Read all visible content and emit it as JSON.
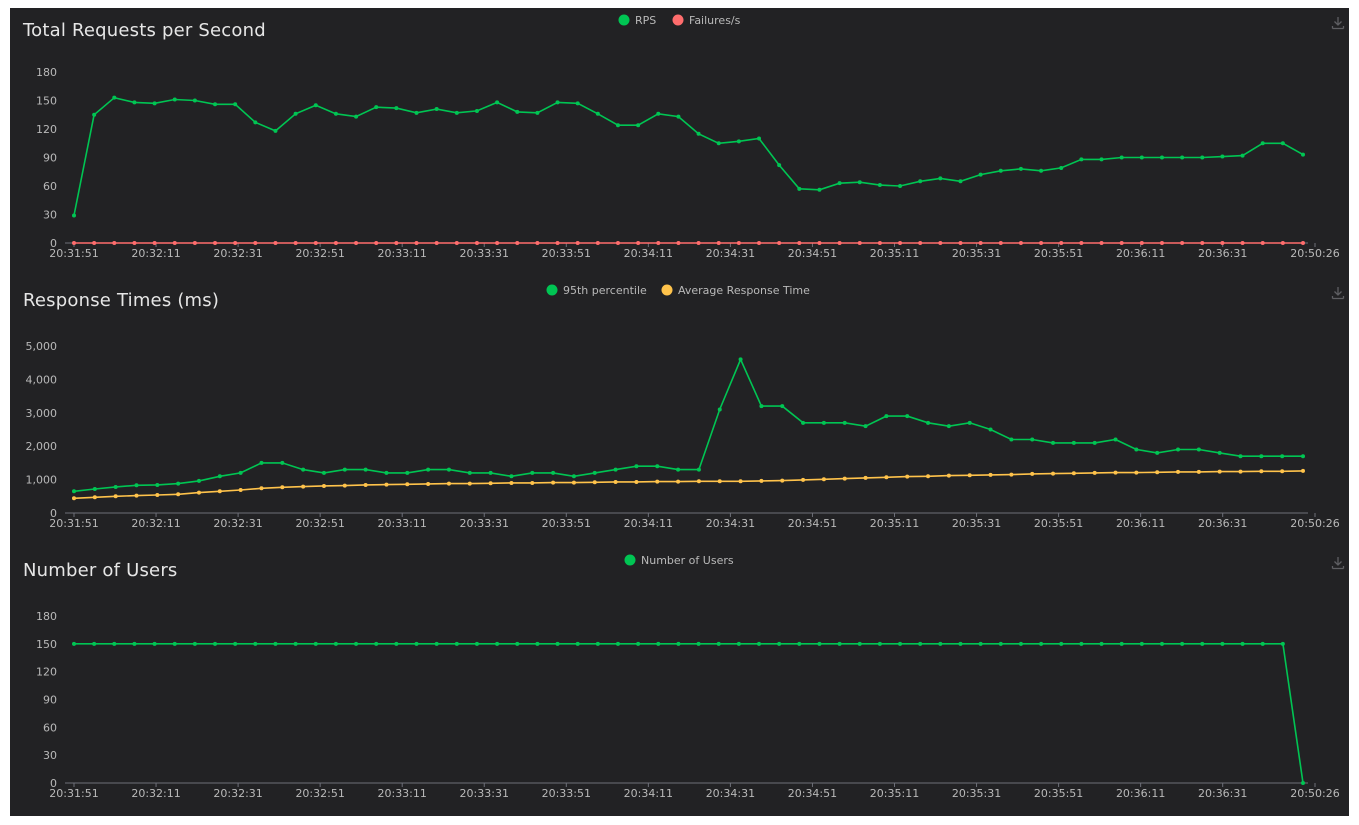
{
  "icons": {
    "download": "download-icon"
  },
  "chart_data": [
    {
      "type": "line",
      "title": "Total Requests per Second",
      "x_tick_labels": [
        "20:31:51",
        "20:32:11",
        "20:32:31",
        "20:32:51",
        "20:33:11",
        "20:33:31",
        "20:33:51",
        "20:34:11",
        "20:34:31",
        "20:34:51",
        "20:35:11",
        "20:35:31",
        "20:35:51",
        "20:36:11",
        "20:36:31",
        "20:50:26"
      ],
      "y_tick_labels": [
        "0",
        "30",
        "60",
        "90",
        "120",
        "150",
        "180"
      ],
      "ylim": [
        0,
        180
      ],
      "grid": false,
      "legend_position": "top-center",
      "series": [
        {
          "name": "RPS",
          "color": "#00c553",
          "values": [
            29,
            135,
            153,
            148,
            147,
            151,
            150,
            146,
            146,
            127,
            118,
            136,
            145,
            136,
            133,
            143,
            142,
            137,
            141,
            137,
            139,
            148,
            138,
            137,
            148,
            147,
            136,
            124,
            124,
            136,
            133,
            115,
            105,
            107,
            110,
            82,
            57,
            56,
            63,
            64,
            61,
            60,
            65,
            68,
            65,
            72,
            76,
            78,
            76,
            79,
            88,
            88,
            90,
            90,
            90,
            90,
            90,
            91,
            92,
            105,
            105,
            93
          ]
        },
        {
          "name": "Failures/s",
          "color": "#ff6d6d",
          "values": [
            0,
            0,
            0,
            0,
            0,
            0,
            0,
            0,
            0,
            0,
            0,
            0,
            0,
            0,
            0,
            0,
            0,
            0,
            0,
            0,
            0,
            0,
            0,
            0,
            0,
            0,
            0,
            0,
            0,
            0,
            0,
            0,
            0,
            0,
            0,
            0,
            0,
            0,
            0,
            0,
            0,
            0,
            0,
            0,
            0,
            0,
            0,
            0,
            0,
            0,
            0,
            0,
            0,
            0,
            0,
            0,
            0,
            0,
            0,
            0,
            0,
            0
          ]
        }
      ]
    },
    {
      "type": "line",
      "title": "Response Times (ms)",
      "x_tick_labels": [
        "20:31:51",
        "20:32:11",
        "20:32:31",
        "20:32:51",
        "20:33:11",
        "20:33:31",
        "20:33:51",
        "20:34:11",
        "20:34:31",
        "20:34:51",
        "20:35:11",
        "20:35:31",
        "20:35:51",
        "20:36:11",
        "20:36:31",
        "20:50:26"
      ],
      "y_tick_labels": [
        "0",
        "1,000",
        "2,000",
        "3,000",
        "4,000",
        "5,000"
      ],
      "ylim": [
        0,
        5000
      ],
      "grid": false,
      "legend_position": "top-center",
      "series": [
        {
          "name": "95th percentile",
          "color": "#00c553",
          "values": [
            650,
            720,
            780,
            830,
            840,
            880,
            960,
            1100,
            1200,
            1500,
            1500,
            1300,
            1200,
            1300,
            1300,
            1200,
            1200,
            1300,
            1300,
            1200,
            1200,
            1100,
            1200,
            1200,
            1100,
            1200,
            1300,
            1400,
            1400,
            1300,
            1300,
            3100,
            4600,
            3200,
            3200,
            2700,
            2700,
            2700,
            2600,
            2900,
            2900,
            2700,
            2600,
            2700,
            2500,
            2200,
            2200,
            2100,
            2100,
            2100,
            2200,
            1900,
            1800,
            1900,
            1900,
            1800,
            1700,
            1700,
            1700,
            1700
          ]
        },
        {
          "name": "Average Response Time",
          "color": "#ffc34b",
          "values": [
            440,
            470,
            500,
            520,
            540,
            560,
            610,
            650,
            690,
            740,
            770,
            790,
            810,
            820,
            840,
            850,
            860,
            870,
            880,
            880,
            890,
            900,
            900,
            910,
            910,
            920,
            930,
            930,
            940,
            940,
            950,
            950,
            950,
            960,
            970,
            990,
            1010,
            1030,
            1050,
            1070,
            1090,
            1100,
            1120,
            1130,
            1140,
            1150,
            1170,
            1180,
            1190,
            1200,
            1210,
            1210,
            1220,
            1230,
            1230,
            1240,
            1240,
            1250,
            1250,
            1260
          ]
        }
      ]
    },
    {
      "type": "line",
      "title": "Number of Users",
      "x_tick_labels": [
        "20:31:51",
        "20:32:11",
        "20:32:31",
        "20:32:51",
        "20:33:11",
        "20:33:31",
        "20:33:51",
        "20:34:11",
        "20:34:31",
        "20:34:51",
        "20:35:11",
        "20:35:31",
        "20:35:51",
        "20:36:11",
        "20:36:31",
        "20:50:26"
      ],
      "y_tick_labels": [
        "0",
        "30",
        "60",
        "90",
        "120",
        "150",
        "180"
      ],
      "ylim": [
        0,
        180
      ],
      "grid": false,
      "legend_position": "top-center",
      "series": [
        {
          "name": "Number of Users",
          "color": "#00c553",
          "values": [
            150,
            150,
            150,
            150,
            150,
            150,
            150,
            150,
            150,
            150,
            150,
            150,
            150,
            150,
            150,
            150,
            150,
            150,
            150,
            150,
            150,
            150,
            150,
            150,
            150,
            150,
            150,
            150,
            150,
            150,
            150,
            150,
            150,
            150,
            150,
            150,
            150,
            150,
            150,
            150,
            150,
            150,
            150,
            150,
            150,
            150,
            150,
            150,
            150,
            150,
            150,
            150,
            150,
            150,
            150,
            150,
            150,
            150,
            150,
            150,
            150,
            0
          ]
        }
      ]
    }
  ]
}
